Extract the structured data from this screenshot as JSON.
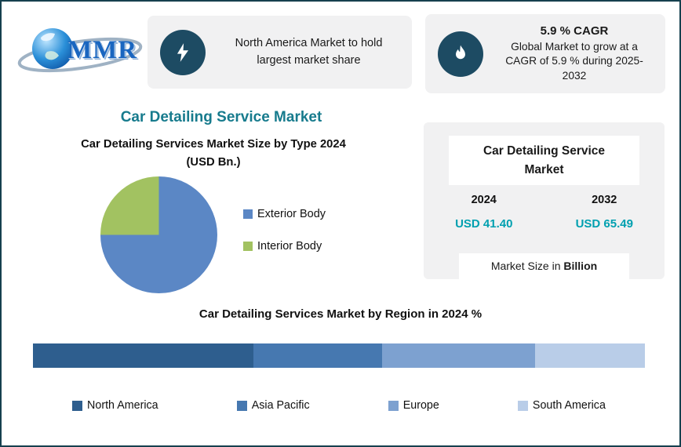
{
  "brand": {
    "logo_text": "MMR"
  },
  "header": {
    "badge1": {
      "text": "North America Market to hold largest market share"
    },
    "badge2": {
      "title": "5.9 % CAGR",
      "text": "Global Market to grow at a CAGR of 5.9 % during 2025-2032"
    }
  },
  "main": {
    "title": "Car Detailing Service Market",
    "pie_title_line1": "Car Detailing Services Market Size by Type 2024",
    "pie_title_line2": "(USD Bn.)"
  },
  "stats_card": {
    "title": "Car Detailing Service Market",
    "year1": "2024",
    "year2": "2032",
    "value1": "USD 41.40",
    "value2": "USD 65.49",
    "footer_text": "Market Size in ",
    "footer_bold": "Billion"
  },
  "region_section": {
    "title": "Car Detailing Services Market by Region in 2024 %"
  },
  "chart_data": [
    {
      "type": "pie",
      "title": "Car Detailing Services Market Size by Type 2024 (USD Bn.)",
      "labels": [
        "Exterior Body",
        "Interior Body"
      ],
      "values": [
        75,
        25
      ],
      "colors": [
        "#5b87c5",
        "#a2c261"
      ],
      "legend_position": "right"
    },
    {
      "type": "bar",
      "orientation": "horizontal-stacked",
      "title": "Car Detailing Services Market by Region in 2024 %",
      "categories": [
        "North America",
        "Asia Pacific",
        "Europe",
        "South America"
      ],
      "values": [
        36,
        21,
        25,
        18
      ],
      "unit": "%",
      "colors": [
        "#2e5e8e",
        "#4678b0",
        "#7da1d0",
        "#b9cde8"
      ]
    }
  ],
  "colors": {
    "accent_teal": "#177b8d",
    "value_teal": "#00a0b0",
    "card_bg": "#f1f1f2",
    "icon_circle_bg": "#1d4b63",
    "page_border": "#16404f"
  }
}
